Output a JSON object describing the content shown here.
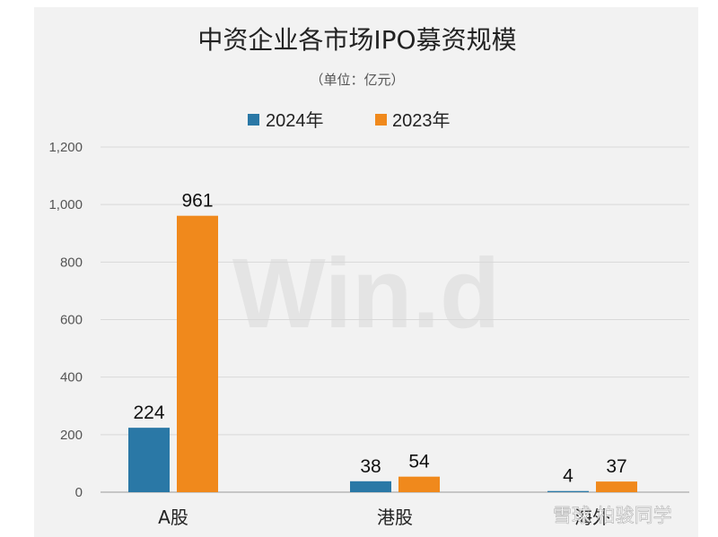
{
  "chart_data": {
    "type": "bar",
    "title": "中资企业各市场IPO募资规模",
    "subtitle": "（单位：亿元）",
    "categories": [
      "A股",
      "港股",
      "海外"
    ],
    "series": [
      {
        "name": "2024年",
        "color": "#2a78a6",
        "values": [
          224,
          38,
          4
        ]
      },
      {
        "name": "2023年",
        "color": "#f0891c",
        "values": [
          961,
          54,
          37
        ]
      }
    ],
    "ylim": [
      0,
      1200
    ],
    "yticks": [
      0,
      200,
      400,
      600,
      800,
      1000,
      1200
    ],
    "ytick_labels": [
      "0",
      "200",
      "400",
      "600",
      "800",
      "1,000",
      "1,200"
    ],
    "data_labels": [
      [
        "224",
        "38",
        "4"
      ],
      [
        "961",
        "54",
        "37"
      ]
    ],
    "grid": true,
    "legend_position": "top"
  },
  "watermarks": {
    "center": "Win.d",
    "corner": "雪球 柏骏同学"
  }
}
